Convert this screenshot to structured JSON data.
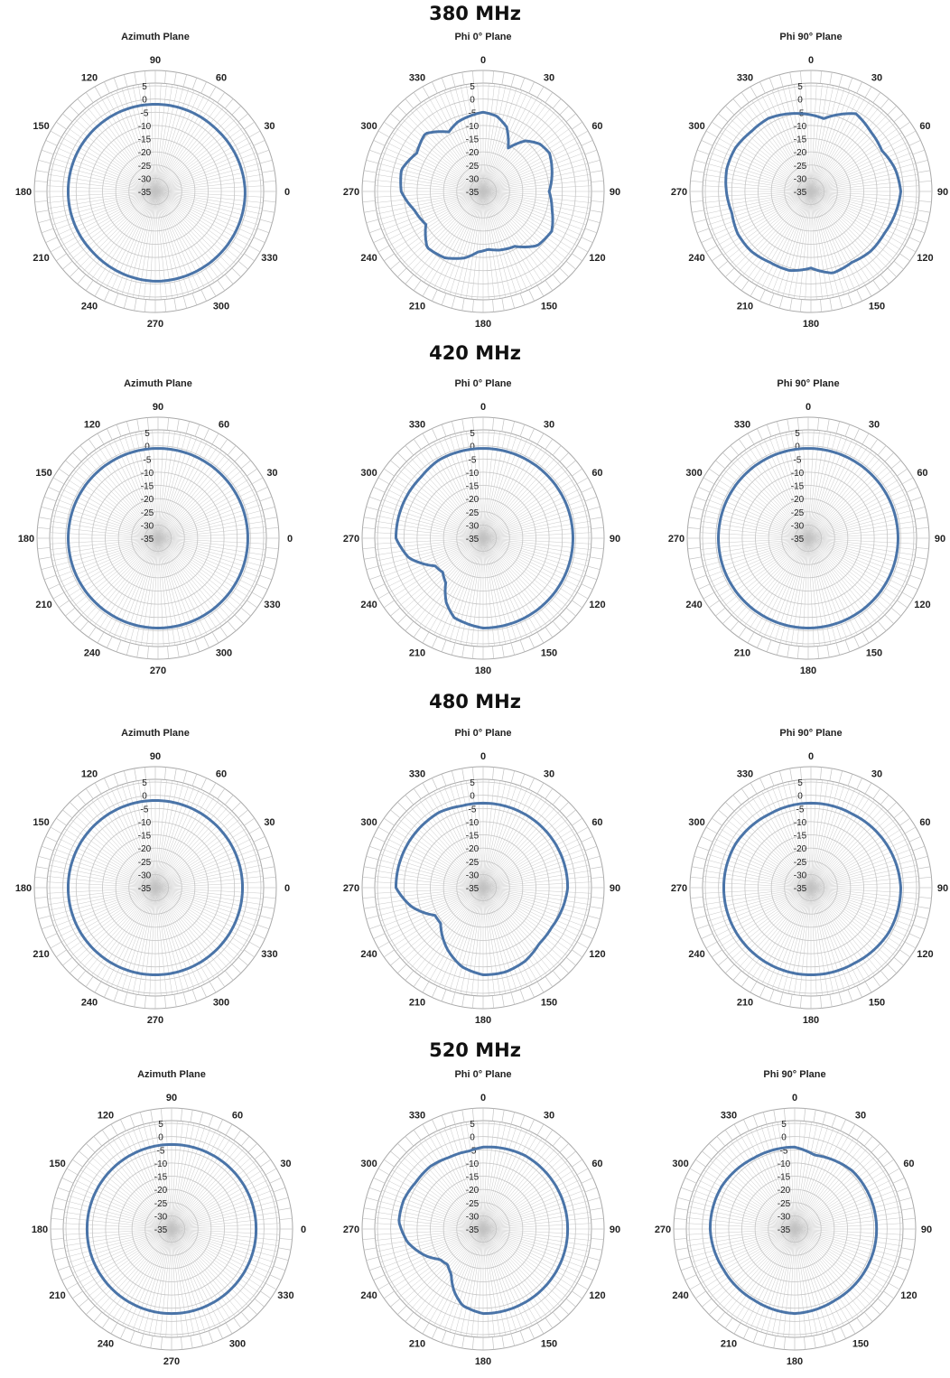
{
  "colors": {
    "trace": "#4a74a8",
    "grid": "#c4c4c4",
    "outer_ring": "#a9a9a9",
    "background": "#ffffff",
    "text": "#222222"
  },
  "bands": [
    {
      "title": "380 MHz"
    },
    {
      "title": "420 MHz"
    },
    {
      "title": "480 MHz"
    },
    {
      "title": "520 MHz"
    }
  ],
  "chart_data": [
    {
      "type": "polar",
      "band": "380 MHz",
      "title": "Azimuth Plane",
      "orientation": "azimuth",
      "r_ticks": [
        "5",
        "0",
        "-5",
        "-10",
        "-15",
        "-20",
        "-25",
        "-30",
        "-35"
      ],
      "rlim": [
        -35,
        5
      ],
      "angle_labels": [
        "0",
        "30",
        "60",
        "90",
        "120",
        "150",
        "180",
        "210",
        "240",
        "270",
        "300",
        "330"
      ],
      "series": [
        {
          "theta": [
            0,
            45,
            90,
            135,
            180,
            225,
            270,
            315
          ],
          "r": [
            -1,
            -2,
            -2,
            -2,
            -2,
            -2,
            -1,
            -1
          ]
        }
      ]
    },
    {
      "type": "polar",
      "band": "380 MHz",
      "title": "Phi 0° Plane",
      "orientation": "phi",
      "r_ticks": [
        "5",
        "0",
        "-5",
        "-10",
        "-15",
        "-20",
        "-25",
        "-30",
        "-35"
      ],
      "rlim": [
        -35,
        5
      ],
      "angle_labels": [
        "0",
        "30",
        "60",
        "90",
        "120",
        "150",
        "180",
        "210",
        "240",
        "270",
        "300",
        "330"
      ],
      "series": [
        {
          "theta": [
            0,
            10,
            20,
            30,
            40,
            50,
            60,
            75,
            90,
            105,
            120,
            135,
            150,
            165,
            175,
            185,
            195,
            210,
            225,
            240,
            255,
            270,
            285,
            300,
            315,
            330,
            340,
            350
          ],
          "r": [
            -5,
            -6,
            -9,
            -16,
            -10,
            -7,
            -6,
            -8,
            -10,
            -8,
            -5,
            -6,
            -11,
            -12,
            -13,
            -12,
            -9,
            -6,
            -5,
            -10,
            -8,
            -4,
            -3,
            -6,
            -4,
            -9,
            -7,
            -6
          ]
        }
      ]
    },
    {
      "type": "polar",
      "band": "380 MHz",
      "title": "Phi 90° Plane",
      "orientation": "phi",
      "r_ticks": [
        "5",
        "0",
        "-5",
        "-10",
        "-15",
        "-20",
        "-25",
        "-30",
        "-35"
      ],
      "rlim": [
        -35,
        5
      ],
      "angle_labels": [
        "0",
        "30",
        "60",
        "90",
        "120",
        "150",
        "180",
        "210",
        "240",
        "270",
        "300",
        "330"
      ],
      "series": [
        {
          "theta": [
            0,
            10,
            20,
            30,
            45,
            60,
            75,
            90,
            105,
            120,
            135,
            150,
            165,
            180,
            195,
            210,
            225,
            240,
            255,
            270,
            285,
            300,
            315,
            330,
            350
          ],
          "r": [
            -6,
            -7,
            -4,
            -1,
            -3,
            -4,
            -2,
            -1,
            -2,
            -3,
            -3,
            -4,
            -3,
            -6,
            -4,
            -4,
            -3,
            -3,
            -4,
            -3,
            -2,
            -2,
            -3,
            -3,
            -5
          ]
        }
      ]
    },
    {
      "type": "polar",
      "band": "420 MHz",
      "title": "Azimuth Plane",
      "orientation": "azimuth",
      "r_ticks": [
        "5",
        "0",
        "-5",
        "-10",
        "-15",
        "-20",
        "-25",
        "-30",
        "-35"
      ],
      "rlim": [
        -35,
        5
      ],
      "angle_labels": [
        "0",
        "30",
        "60",
        "90",
        "120",
        "150",
        "180",
        "210",
        "240",
        "270",
        "300",
        "330"
      ],
      "series": [
        {
          "theta": [
            0,
            45,
            90,
            135,
            180,
            225,
            270,
            315
          ],
          "r": [
            -1,
            -1,
            -1,
            -1,
            -1,
            -1,
            -1,
            -1
          ]
        }
      ]
    },
    {
      "type": "polar",
      "band": "420 MHz",
      "title": "Phi 0° Plane",
      "orientation": "phi",
      "r_ticks": [
        "5",
        "0",
        "-5",
        "-10",
        "-15",
        "-20",
        "-25",
        "-30",
        "-35"
      ],
      "rlim": [
        -35,
        5
      ],
      "angle_labels": [
        "0",
        "30",
        "60",
        "90",
        "120",
        "150",
        "180",
        "210",
        "240",
        "270",
        "300",
        "330"
      ],
      "series": [
        {
          "theta": [
            0,
            30,
            60,
            90,
            120,
            150,
            180,
            200,
            210,
            220,
            230,
            240,
            255,
            270,
            285,
            300,
            315,
            330,
            345
          ],
          "r": [
            -1,
            -1,
            -1,
            -1,
            -1,
            -1,
            -1,
            -3,
            -7,
            -13,
            -15,
            -14,
            -6,
            -2,
            -2,
            -2,
            -2,
            -1,
            -1
          ]
        }
      ]
    },
    {
      "type": "polar",
      "band": "420 MHz",
      "title": "Phi 90° Plane",
      "orientation": "phi",
      "r_ticks": [
        "5",
        "0",
        "-5",
        "-10",
        "-15",
        "-20",
        "-25",
        "-30",
        "-35"
      ],
      "rlim": [
        -35,
        5
      ],
      "angle_labels": [
        "0",
        "30",
        "60",
        "90",
        "120",
        "150",
        "180",
        "210",
        "240",
        "270",
        "300",
        "330"
      ],
      "series": [
        {
          "theta": [
            0,
            45,
            90,
            135,
            180,
            225,
            270,
            315
          ],
          "r": [
            -1,
            -1,
            -1,
            -1,
            -1,
            -1,
            -1,
            -1
          ]
        }
      ]
    },
    {
      "type": "polar",
      "band": "480 MHz",
      "title": "Azimuth Plane",
      "orientation": "azimuth",
      "r_ticks": [
        "5",
        "0",
        "-5",
        "-10",
        "-15",
        "-20",
        "-25",
        "-30",
        "-35"
      ],
      "rlim": [
        -35,
        5
      ],
      "angle_labels": [
        "0",
        "30",
        "60",
        "90",
        "120",
        "150",
        "180",
        "210",
        "240",
        "270",
        "300",
        "330"
      ],
      "series": [
        {
          "theta": [
            0,
            45,
            90,
            135,
            180,
            225,
            270,
            315
          ],
          "r": [
            -2,
            -2,
            -2,
            -2,
            -2,
            -2,
            -2,
            -2
          ]
        }
      ]
    },
    {
      "type": "polar",
      "band": "480 MHz",
      "title": "Phi 0° Plane",
      "orientation": "phi",
      "r_ticks": [
        "5",
        "0",
        "-5",
        "-10",
        "-15",
        "-20",
        "-25",
        "-30",
        "-35"
      ],
      "rlim": [
        -35,
        5
      ],
      "angle_labels": [
        "0",
        "30",
        "60",
        "90",
        "120",
        "150",
        "180",
        "210",
        "240",
        "270",
        "300",
        "330"
      ],
      "series": [
        {
          "theta": [
            0,
            30,
            60,
            90,
            105,
            120,
            135,
            150,
            165,
            180,
            195,
            210,
            220,
            230,
            240,
            255,
            270,
            285,
            300,
            315,
            330,
            345
          ],
          "r": [
            -3,
            -3,
            -3,
            -3,
            -4,
            -5,
            -5,
            -3,
            -2,
            -2,
            -4,
            -8,
            -11,
            -14,
            -14,
            -7,
            -2,
            -2,
            -2,
            -2,
            -2,
            -3
          ]
        }
      ]
    },
    {
      "type": "polar",
      "band": "480 MHz",
      "title": "Phi 90° Plane",
      "orientation": "phi",
      "r_ticks": [
        "5",
        "0",
        "-5",
        "-10",
        "-15",
        "-20",
        "-25",
        "-30",
        "-35"
      ],
      "rlim": [
        -35,
        5
      ],
      "angle_labels": [
        "0",
        "30",
        "60",
        "90",
        "120",
        "150",
        "180",
        "210",
        "240",
        "270",
        "300",
        "330"
      ],
      "series": [
        {
          "theta": [
            0,
            15,
            30,
            60,
            90,
            120,
            150,
            180,
            210,
            240,
            270,
            300,
            330,
            345
          ],
          "r": [
            -3,
            -3,
            -3,
            -2,
            -1,
            -1,
            -2,
            -2,
            -2,
            -2,
            -2,
            -2,
            -3,
            -3
          ]
        }
      ]
    },
    {
      "type": "polar",
      "band": "520 MHz",
      "title": "Azimuth Plane",
      "orientation": "azimuth",
      "r_ticks": [
        "5",
        "0",
        "-5",
        "-10",
        "-15",
        "-20",
        "-25",
        "-30",
        "-35"
      ],
      "rlim": [
        -35,
        5
      ],
      "angle_labels": [
        "0",
        "30",
        "60",
        "90",
        "120",
        "150",
        "180",
        "210",
        "240",
        "270",
        "300",
        "330"
      ],
      "series": [
        {
          "theta": [
            0,
            45,
            90,
            135,
            180,
            225,
            270,
            315
          ],
          "r": [
            -3,
            -3,
            -3,
            -3,
            -3,
            -3,
            -3,
            -3
          ]
        }
      ]
    },
    {
      "type": "polar",
      "band": "520 MHz",
      "title": "Phi 0° Plane",
      "orientation": "phi",
      "r_ticks": [
        "5",
        "0",
        "-5",
        "-10",
        "-15",
        "-20",
        "-25",
        "-30",
        "-35"
      ],
      "rlim": [
        -35,
        5
      ],
      "angle_labels": [
        "0",
        "30",
        "60",
        "90",
        "120",
        "150",
        "180",
        "210",
        "240",
        "270",
        "300",
        "330"
      ],
      "series": [
        {
          "theta": [
            0,
            30,
            60,
            90,
            120,
            150,
            165,
            180,
            195,
            205,
            215,
            225,
            235,
            245,
            260,
            275,
            290,
            305,
            320,
            335,
            350
          ],
          "r": [
            -4,
            -3,
            -3,
            -3,
            -3,
            -3,
            -3,
            -3,
            -5,
            -9,
            -14,
            -16,
            -15,
            -11,
            -6,
            -3,
            -3,
            -4,
            -4,
            -5,
            -5
          ]
        }
      ]
    },
    {
      "type": "polar",
      "band": "520 MHz",
      "title": "Phi 90° Plane",
      "orientation": "phi",
      "r_ticks": [
        "5",
        "0",
        "-5",
        "-10",
        "-15",
        "-20",
        "-25",
        "-30",
        "-35"
      ],
      "rlim": [
        -35,
        5
      ],
      "angle_labels": [
        "0",
        "30",
        "60",
        "90",
        "120",
        "150",
        "180",
        "210",
        "240",
        "270",
        "300",
        "330"
      ],
      "series": [
        {
          "theta": [
            0,
            15,
            30,
            45,
            60,
            90,
            120,
            150,
            180,
            210,
            240,
            270,
            300,
            330,
            345
          ],
          "r": [
            -4,
            -6,
            -5,
            -4,
            -4,
            -4,
            -4,
            -4,
            -3,
            -4,
            -4,
            -3,
            -3,
            -4,
            -4
          ]
        }
      ]
    }
  ]
}
